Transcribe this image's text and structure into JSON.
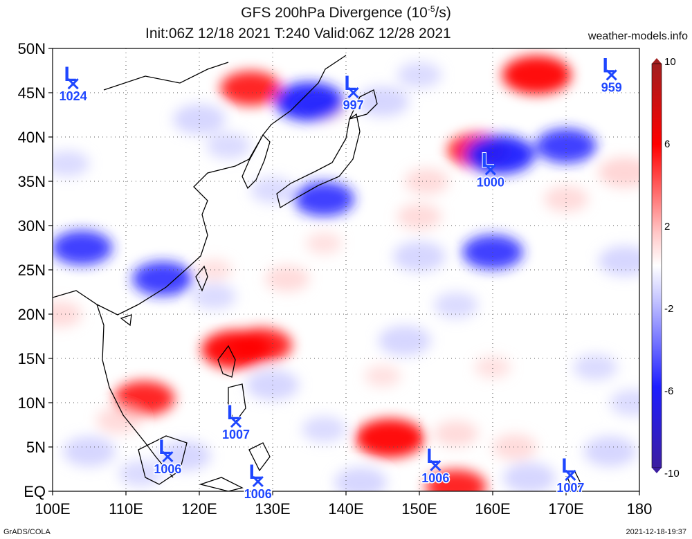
{
  "header": {
    "title_prefix": "GFS 200hPa Divergence (10",
    "title_exp": "-5",
    "title_suffix": "/s)",
    "subtitle": "Init:06Z 12/18 2021 T:240 Valid:06Z 12/28 2021",
    "site": "weather-models.info"
  },
  "footer": {
    "left": "GrADS/COLA",
    "right": "2021-12-18-19:37"
  },
  "map": {
    "lon_range": [
      100,
      180
    ],
    "lat_range": [
      0,
      50
    ],
    "lat_labels": [
      "EQ",
      "5N",
      "10N",
      "15N",
      "20N",
      "25N",
      "30N",
      "35N",
      "40N",
      "45N",
      "50N"
    ],
    "lon_labels": [
      "100E",
      "110E",
      "120E",
      "130E",
      "140E",
      "150E",
      "160E",
      "170E",
      "180"
    ],
    "grid": true
  },
  "lows": [
    {
      "label": "L",
      "value": "1024",
      "lon": 102.8,
      "lat": 46.0
    },
    {
      "label": "L",
      "value": "997",
      "lon": 141.0,
      "lat": 45.0
    },
    {
      "label": "L",
      "value": "959",
      "lon": 176.2,
      "lat": 47.0
    },
    {
      "label": "L",
      "value": "1000",
      "lon": 159.7,
      "lat": 36.3
    },
    {
      "label": "L",
      "value": "1007",
      "lon": 125.0,
      "lat": 7.8
    },
    {
      "label": "L",
      "value": "1006",
      "lon": 115.7,
      "lat": 3.9
    },
    {
      "label": "L",
      "value": "1006",
      "lon": 128.0,
      "lat": 1.1
    },
    {
      "label": "L",
      "value": "1006",
      "lon": 152.2,
      "lat": 2.9
    },
    {
      "label": "L",
      "value": "1007",
      "lon": 170.6,
      "lat": 1.8
    }
  ],
  "colorbar": {
    "labels": [
      "10",
      "6",
      "2",
      "-2",
      "-6",
      "-10"
    ],
    "colors": {
      "max": "#a01e1e",
      "strong_pos": "#ff0000",
      "weak_pos": "#ffc8c8",
      "zero": "#ffffff",
      "weak_neg": "#c8c8ff",
      "strong_neg": "#1e1eff",
      "min": "#3c1ea0"
    }
  },
  "fields": {
    "positive": [
      {
        "lon": 112.5,
        "lat": 10.5,
        "amp": 5
      },
      {
        "lon": 109,
        "lat": 8,
        "amp": 3
      },
      {
        "lon": 125,
        "lat": 16,
        "amp": 6
      },
      {
        "lon": 128.5,
        "lat": 16.5,
        "amp": 5
      },
      {
        "lon": 146,
        "lat": 6,
        "amp": 6
      },
      {
        "lon": 155,
        "lat": 6.5,
        "amp": 3
      },
      {
        "lon": 163,
        "lat": 5,
        "amp": 3
      },
      {
        "lon": 155,
        "lat": 0.5,
        "amp": 5
      },
      {
        "lon": 166,
        "lat": 47,
        "amp": 6
      },
      {
        "lon": 158,
        "lat": 38.5,
        "amp": 5
      },
      {
        "lon": 151,
        "lat": 35,
        "amp": 3
      },
      {
        "lon": 150,
        "lat": 31,
        "amp": 3
      },
      {
        "lon": 170,
        "lat": 33,
        "amp": 3
      },
      {
        "lon": 178,
        "lat": 36,
        "amp": 4
      },
      {
        "lon": 127,
        "lat": 45.5,
        "amp": 5
      },
      {
        "lon": 136.5,
        "lat": 43.5,
        "amp": 4
      },
      {
        "lon": 132,
        "lat": 24,
        "amp": 3
      },
      {
        "lon": 122,
        "lat": 25,
        "amp": 2
      },
      {
        "lon": 101,
        "lat": 20,
        "amp": 3
      },
      {
        "lon": 160,
        "lat": 14,
        "amp": 2
      },
      {
        "lon": 145,
        "lat": 13,
        "amp": 2
      },
      {
        "lon": 137,
        "lat": 28,
        "amp": 2
      }
    ],
    "negative": [
      {
        "lon": 104,
        "lat": 27.5,
        "amp": 5
      },
      {
        "lon": 115,
        "lat": 24,
        "amp": 5
      },
      {
        "lon": 122,
        "lat": 22,
        "amp": 3
      },
      {
        "lon": 137,
        "lat": 33,
        "amp": 5
      },
      {
        "lon": 130,
        "lat": 34,
        "amp": 3
      },
      {
        "lon": 135,
        "lat": 44,
        "amp": 6
      },
      {
        "lon": 120,
        "lat": 42,
        "amp": 4
      },
      {
        "lon": 145,
        "lat": 44,
        "amp": 4
      },
      {
        "lon": 124,
        "lat": 39,
        "amp": 3
      },
      {
        "lon": 161,
        "lat": 38,
        "amp": 6
      },
      {
        "lon": 170,
        "lat": 39,
        "amp": 5
      },
      {
        "lon": 160,
        "lat": 27,
        "amp": 5
      },
      {
        "lon": 150,
        "lat": 26.5,
        "amp": 4
      },
      {
        "lon": 178,
        "lat": 26,
        "amp": 4
      },
      {
        "lon": 130,
        "lat": 12,
        "amp": 4
      },
      {
        "lon": 148,
        "lat": 17,
        "amp": 4
      },
      {
        "lon": 155,
        "lat": 21,
        "amp": 3
      },
      {
        "lon": 105,
        "lat": 4.5,
        "amp": 4
      },
      {
        "lon": 118,
        "lat": 4,
        "amp": 4
      },
      {
        "lon": 137,
        "lat": 7,
        "amp": 3
      },
      {
        "lon": 142,
        "lat": 1,
        "amp": 4
      },
      {
        "lon": 165,
        "lat": 1.5,
        "amp": 4
      },
      {
        "lon": 176,
        "lat": 4.5,
        "amp": 4
      },
      {
        "lon": 174,
        "lat": 14,
        "amp": 3
      },
      {
        "lon": 112,
        "lat": 2,
        "amp": 3
      },
      {
        "lon": 179,
        "lat": 10,
        "amp": 3
      },
      {
        "lon": 102,
        "lat": 37,
        "amp": 3
      },
      {
        "lon": 150,
        "lat": 47,
        "amp": 3
      }
    ]
  }
}
